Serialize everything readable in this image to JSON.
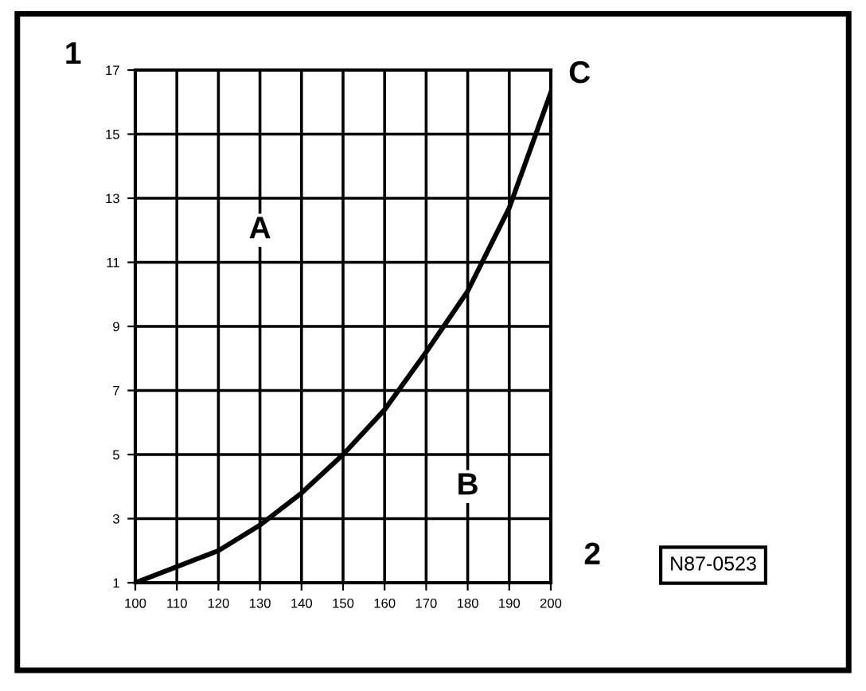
{
  "chart_data": {
    "type": "line",
    "xlabel": "2",
    "ylabel": "1",
    "x": [
      100,
      110,
      120,
      130,
      140,
      150,
      160,
      170,
      180,
      190,
      200
    ],
    "series": [
      {
        "color": "#000000",
        "values": [
          1,
          1.5,
          2.0,
          2.8,
          3.8,
          5.0,
          6.4,
          8.2,
          10.1,
          12.7,
          16.3
        ]
      }
    ],
    "xlim": [
      100,
      200
    ],
    "ylim": [
      1,
      17
    ],
    "xticks": [
      100,
      110,
      120,
      130,
      140,
      150,
      160,
      170,
      180,
      190,
      200
    ],
    "yticks": [
      1,
      3,
      5,
      7,
      9,
      11,
      13,
      15,
      17
    ],
    "grid": true,
    "marker": "none",
    "line_style": "solid",
    "annotations": [
      {
        "text": "A",
        "x": 130,
        "y": 12
      },
      {
        "text": "B",
        "x": 180,
        "y": 4
      },
      {
        "text": "C",
        "x": 200,
        "y": 16.3
      },
      "N87-0523"
    ]
  }
}
